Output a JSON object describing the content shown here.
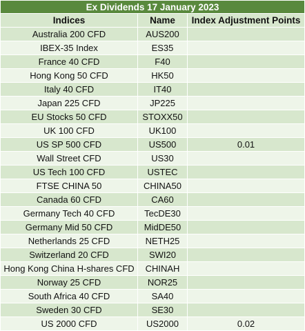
{
  "title": "Ex Dividends 17 January 2023",
  "headers": {
    "indices": "Indices",
    "name": "Name",
    "points": "Index Adjustment Points"
  },
  "rows": [
    {
      "index": "Australia 200 CFD",
      "name": "AUS200",
      "points": ""
    },
    {
      "index": "IBEX-35 Index",
      "name": "ES35",
      "points": ""
    },
    {
      "index": "France 40 CFD",
      "name": "F40",
      "points": ""
    },
    {
      "index": "Hong Kong 50 CFD",
      "name": "HK50",
      "points": ""
    },
    {
      "index": "Italy 40 CFD",
      "name": "IT40",
      "points": ""
    },
    {
      "index": "Japan 225 CFD",
      "name": "JP225",
      "points": ""
    },
    {
      "index": "EU Stocks 50 CFD",
      "name": "STOXX50",
      "points": ""
    },
    {
      "index": "UK 100 CFD",
      "name": "UK100",
      "points": ""
    },
    {
      "index": "US SP 500 CFD",
      "name": "US500",
      "points": "0.01"
    },
    {
      "index": "Wall Street CFD",
      "name": "US30",
      "points": ""
    },
    {
      "index": "US Tech 100 CFD",
      "name": "USTEC",
      "points": ""
    },
    {
      "index": "FTSE CHINA 50",
      "name": "CHINA50",
      "points": ""
    },
    {
      "index": "Canada 60 CFD",
      "name": "CA60",
      "points": ""
    },
    {
      "index": "Germany Tech 40 CFD",
      "name": "TecDE30",
      "points": ""
    },
    {
      "index": "Germany Mid 50 CFD",
      "name": "MidDE50",
      "points": ""
    },
    {
      "index": "Netherlands 25 CFD",
      "name": "NETH25",
      "points": ""
    },
    {
      "index": "Switzerland 20 CFD",
      "name": "SWI20",
      "points": ""
    },
    {
      "index": "Hong Kong China H-shares CFD",
      "name": "CHINAH",
      "points": ""
    },
    {
      "index": "Norway 25 CFD",
      "name": "NOR25",
      "points": ""
    },
    {
      "index": "South Africa 40 CFD",
      "name": "SA40",
      "points": ""
    },
    {
      "index": "Sweden 30 CFD",
      "name": "SE30",
      "points": ""
    },
    {
      "index": "US 2000 CFD",
      "name": "US2000",
      "points": "0.02"
    }
  ],
  "colors": {
    "title_bg": "#59893d",
    "band_dark": "#d7e7cd",
    "band_light": "#eef5e9"
  }
}
